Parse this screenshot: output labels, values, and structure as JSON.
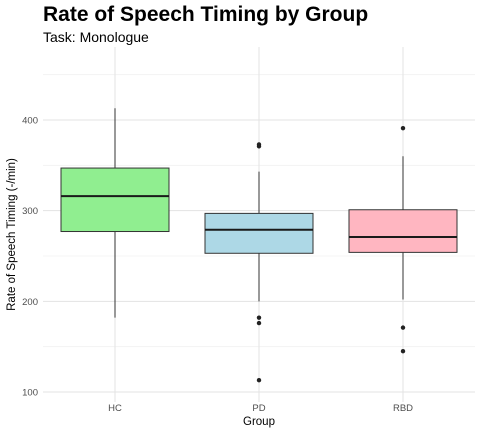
{
  "chart_data": {
    "type": "boxplot",
    "title": "Rate of Speech Timing by Group",
    "subtitle": "Task: Monologue",
    "xlabel": "Group",
    "ylabel": "Rate of Speech Timing (-/min)",
    "ylim": [
      95,
      460
    ],
    "yticks": [
      100,
      200,
      300,
      400
    ],
    "grid": true,
    "categories": [
      "HC",
      "PD",
      "RBD"
    ],
    "boxes": [
      {
        "category": "HC",
        "color": "#90ee90",
        "q1": 277,
        "median": 316,
        "q3": 347,
        "whisker_low": 182,
        "whisker_high": 413,
        "outliers": []
      },
      {
        "category": "PD",
        "color": "#add8e6",
        "q1": 253,
        "median": 279,
        "q3": 297,
        "whisker_low": 200,
        "whisker_high": 343,
        "outliers": [
          371,
          373,
          182,
          176,
          113
        ]
      },
      {
        "category": "RBD",
        "color": "#ffb6c1",
        "q1": 254,
        "median": 271,
        "q3": 301,
        "whisker_low": 202,
        "whisker_high": 360,
        "outliers": [
          391,
          171,
          145
        ]
      }
    ]
  }
}
